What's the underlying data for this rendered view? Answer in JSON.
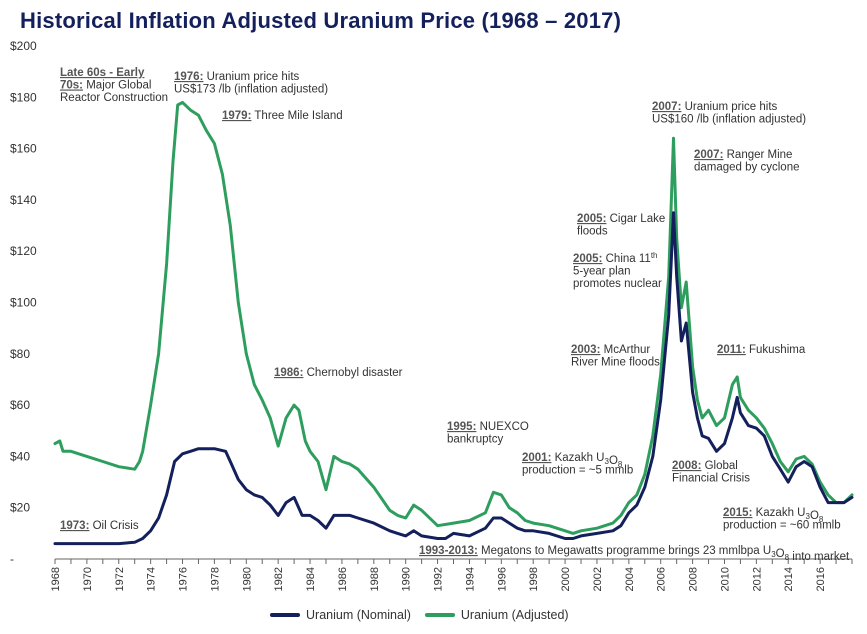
{
  "title": "Historical Inflation Adjusted Uranium Price (1968 – 2017)",
  "chart_data": {
    "type": "line",
    "ylim": [
      0,
      200
    ],
    "xlim": [
      1968,
      2018
    ],
    "y_ticks": [
      "-",
      "$20",
      "$40",
      "$60",
      "$80",
      "$100",
      "$120",
      "$140",
      "$160",
      "$180",
      "$200"
    ],
    "x_ticks": [
      "1968",
      "1970",
      "1972",
      "1974",
      "1976",
      "1978",
      "1980",
      "1982",
      "1984",
      "1986",
      "1988",
      "1990",
      "1992",
      "1994",
      "1996",
      "1998",
      "2000",
      "2002",
      "2004",
      "2006",
      "2008",
      "2010",
      "2012",
      "2014",
      "2016"
    ],
    "colors": {
      "nominal": "#14205c",
      "adjusted": "#2e9e5e"
    },
    "series": [
      {
        "name": "Uranium (Nominal)",
        "points": [
          [
            1968,
            6
          ],
          [
            1969,
            6
          ],
          [
            1970,
            6
          ],
          [
            1971,
            6
          ],
          [
            1972,
            6
          ],
          [
            1973,
            6.5
          ],
          [
            1973.5,
            8
          ],
          [
            1974,
            11
          ],
          [
            1974.5,
            16
          ],
          [
            1975,
            25
          ],
          [
            1975.5,
            38
          ],
          [
            1976,
            41
          ],
          [
            1976.5,
            42
          ],
          [
            1977,
            43
          ],
          [
            1978,
            43
          ],
          [
            1978.7,
            42
          ],
          [
            1979,
            38
          ],
          [
            1979.5,
            31
          ],
          [
            1980,
            27
          ],
          [
            1980.5,
            25
          ],
          [
            1981,
            24
          ],
          [
            1981.5,
            21
          ],
          [
            1982,
            17
          ],
          [
            1982.5,
            22
          ],
          [
            1983,
            24
          ],
          [
            1983.5,
            17
          ],
          [
            1984,
            17
          ],
          [
            1984.5,
            15
          ],
          [
            1985,
            12
          ],
          [
            1985.5,
            17
          ],
          [
            1986,
            17
          ],
          [
            1986.5,
            17
          ],
          [
            1987,
            16
          ],
          [
            1988,
            14
          ],
          [
            1989,
            11
          ],
          [
            1989.5,
            10
          ],
          [
            1990,
            9
          ],
          [
            1990.5,
            11
          ],
          [
            1991,
            9
          ],
          [
            1992,
            8
          ],
          [
            1992.5,
            8
          ],
          [
            1993,
            10
          ],
          [
            1994,
            9
          ],
          [
            1995,
            12
          ],
          [
            1995.5,
            16
          ],
          [
            1996,
            16
          ],
          [
            1996.5,
            14
          ],
          [
            1997,
            12
          ],
          [
            1997.5,
            11
          ],
          [
            1998,
            11
          ],
          [
            1999,
            10
          ],
          [
            2000,
            8
          ],
          [
            2000.5,
            8
          ],
          [
            2001,
            9
          ],
          [
            2002,
            10
          ],
          [
            2003,
            11
          ],
          [
            2003.5,
            13
          ],
          [
            2004,
            18
          ],
          [
            2004.5,
            21
          ],
          [
            2005,
            28
          ],
          [
            2005.5,
            40
          ],
          [
            2006,
            62
          ],
          [
            2006.5,
            95
          ],
          [
            2006.8,
            135
          ],
          [
            2007,
            110
          ],
          [
            2007.3,
            85
          ],
          [
            2007.6,
            92
          ],
          [
            2008,
            65
          ],
          [
            2008.3,
            55
          ],
          [
            2008.6,
            48
          ],
          [
            2009,
            47
          ],
          [
            2009.5,
            42
          ],
          [
            2010,
            45
          ],
          [
            2010.5,
            55
          ],
          [
            2010.8,
            63
          ],
          [
            2011,
            57
          ],
          [
            2011.5,
            52
          ],
          [
            2012,
            51
          ],
          [
            2012.5,
            48
          ],
          [
            2013,
            40
          ],
          [
            2013.5,
            35
          ],
          [
            2014,
            30
          ],
          [
            2014.5,
            36
          ],
          [
            2015,
            38
          ],
          [
            2015.5,
            36
          ],
          [
            2016,
            28
          ],
          [
            2016.5,
            22
          ],
          [
            2017,
            22
          ],
          [
            2017.5,
            22
          ],
          [
            2018,
            24
          ]
        ]
      },
      {
        "name": "Uranium (Adjusted)",
        "points": [
          [
            1968,
            45
          ],
          [
            1968.3,
            46
          ],
          [
            1968.5,
            42
          ],
          [
            1969,
            42
          ],
          [
            1970,
            40
          ],
          [
            1971,
            38
          ],
          [
            1972,
            36
          ],
          [
            1973,
            35
          ],
          [
            1973.3,
            38
          ],
          [
            1973.5,
            42
          ],
          [
            1974,
            60
          ],
          [
            1974.5,
            80
          ],
          [
            1975,
            115
          ],
          [
            1975.4,
            155
          ],
          [
            1975.7,
            177
          ],
          [
            1976,
            178
          ],
          [
            1976.5,
            175
          ],
          [
            1977,
            173
          ],
          [
            1977.5,
            167
          ],
          [
            1978,
            162
          ],
          [
            1978.5,
            150
          ],
          [
            1979,
            130
          ],
          [
            1979.5,
            100
          ],
          [
            1980,
            80
          ],
          [
            1980.5,
            68
          ],
          [
            1981,
            62
          ],
          [
            1981.5,
            55
          ],
          [
            1982,
            44
          ],
          [
            1982.5,
            55
          ],
          [
            1983,
            60
          ],
          [
            1983.3,
            58
          ],
          [
            1983.7,
            46
          ],
          [
            1984,
            42
          ],
          [
            1984.5,
            38
          ],
          [
            1985,
            27
          ],
          [
            1985.5,
            40
          ],
          [
            1986,
            38
          ],
          [
            1986.5,
            37
          ],
          [
            1987,
            35
          ],
          [
            1988,
            28
          ],
          [
            1989,
            19
          ],
          [
            1989.5,
            17
          ],
          [
            1990,
            16
          ],
          [
            1990.5,
            21
          ],
          [
            1991,
            19
          ],
          [
            1992,
            13
          ],
          [
            1993,
            14
          ],
          [
            1994,
            15
          ],
          [
            1995,
            18
          ],
          [
            1995.5,
            26
          ],
          [
            1996,
            25
          ],
          [
            1996.5,
            20
          ],
          [
            1997,
            18
          ],
          [
            1997.5,
            15
          ],
          [
            1998,
            14
          ],
          [
            1999,
            13
          ],
          [
            2000,
            11
          ],
          [
            2000.5,
            10
          ],
          [
            2001,
            11
          ],
          [
            2002,
            12
          ],
          [
            2003,
            14
          ],
          [
            2003.5,
            17
          ],
          [
            2004,
            22
          ],
          [
            2004.5,
            25
          ],
          [
            2005,
            33
          ],
          [
            2005.5,
            48
          ],
          [
            2006,
            72
          ],
          [
            2006.5,
            110
          ],
          [
            2006.8,
            164
          ],
          [
            2007,
            125
          ],
          [
            2007.3,
            98
          ],
          [
            2007.6,
            108
          ],
          [
            2008,
            75
          ],
          [
            2008.3,
            62
          ],
          [
            2008.6,
            55
          ],
          [
            2009,
            58
          ],
          [
            2009.5,
            52
          ],
          [
            2010,
            55
          ],
          [
            2010.5,
            68
          ],
          [
            2010.8,
            71
          ],
          [
            2011,
            63
          ],
          [
            2011.5,
            58
          ],
          [
            2012,
            55
          ],
          [
            2012.5,
            51
          ],
          [
            2013,
            45
          ],
          [
            2013.5,
            38
          ],
          [
            2014,
            34
          ],
          [
            2014.5,
            39
          ],
          [
            2015,
            40
          ],
          [
            2015.5,
            37
          ],
          [
            2016,
            30
          ],
          [
            2016.5,
            25
          ],
          [
            2017,
            22
          ],
          [
            2017.5,
            22
          ],
          [
            2018,
            25
          ]
        ]
      }
    ],
    "annotations": [
      {
        "id": "late60s",
        "lines": [
          [
            {
              "t": "Late 60s - Early",
              "b": true
            }
          ],
          [
            {
              "t": "70s:",
              "b": true
            },
            {
              "t": " Major Global"
            }
          ],
          [
            {
              "t": "Reactor Construction"
            }
          ]
        ]
      },
      {
        "id": "y1976",
        "lines": [
          [
            {
              "t": "1976:",
              "b": true
            },
            {
              "t": " Uranium price hits"
            }
          ],
          [
            {
              "t": "US$173 /lb (inflation adjusted)"
            }
          ]
        ]
      },
      {
        "id": "y1979",
        "lines": [
          [
            {
              "t": "1979:",
              "b": true
            },
            {
              "t": " Three Mile Island"
            }
          ]
        ]
      },
      {
        "id": "y1986",
        "lines": [
          [
            {
              "t": "1986:",
              "b": true
            },
            {
              "t": " Chernobyl disaster"
            }
          ]
        ]
      },
      {
        "id": "y1973",
        "lines": [
          [
            {
              "t": "1973:",
              "b": true
            },
            {
              "t": " Oil Crisis"
            }
          ]
        ]
      },
      {
        "id": "y1995",
        "lines": [
          [
            {
              "t": "1995:",
              "b": true
            },
            {
              "t": " NUEXCO"
            }
          ],
          [
            {
              "t": "bankruptcy"
            }
          ]
        ]
      },
      {
        "id": "y2001",
        "lines": [
          [
            {
              "t": "2001:",
              "b": true
            },
            {
              "t": " Kazakh U"
            },
            {
              "t": "3",
              "sub": true
            },
            {
              "t": "O"
            },
            {
              "t": "8",
              "sub": true
            }
          ],
          [
            {
              "t": "production = ~5 mmlb"
            }
          ]
        ]
      },
      {
        "id": "y1993",
        "lines": [
          [
            {
              "t": "1993-2013:",
              "b": true
            },
            {
              "t": " Megatons to Megawatts programme brings 23 mmlbpa U"
            },
            {
              "t": "3",
              "sub": true
            },
            {
              "t": "O"
            },
            {
              "t": "8",
              "sub": true
            },
            {
              "t": " into market"
            }
          ]
        ]
      },
      {
        "id": "y2003",
        "lines": [
          [
            {
              "t": "2003:",
              "b": true
            },
            {
              "t": " McArthur"
            }
          ],
          [
            {
              "t": "River Mine floods"
            }
          ]
        ]
      },
      {
        "id": "y2005a",
        "lines": [
          [
            {
              "t": "2005:",
              "b": true
            },
            {
              "t": " Cigar Lake"
            }
          ],
          [
            {
              "t": "floods"
            }
          ]
        ]
      },
      {
        "id": "y2005b",
        "lines": [
          [
            {
              "t": "2005:",
              "b": true
            },
            {
              "t": " China 11"
            },
            {
              "t": "th",
              "sup": true
            }
          ],
          [
            {
              "t": "5-year plan"
            }
          ],
          [
            {
              "t": "promotes nuclear"
            }
          ]
        ]
      },
      {
        "id": "y2007a",
        "lines": [
          [
            {
              "t": "2007:",
              "b": true
            },
            {
              "t": " Uranium price hits"
            }
          ],
          [
            {
              "t": "US$160 /lb (inflation adjusted)"
            }
          ]
        ]
      },
      {
        "id": "y2007b",
        "lines": [
          [
            {
              "t": "2007:",
              "b": true
            },
            {
              "t": " Ranger Mine"
            }
          ],
          [
            {
              "t": "damaged by cyclone"
            }
          ]
        ]
      },
      {
        "id": "y2011",
        "lines": [
          [
            {
              "t": "2011:",
              "b": true
            },
            {
              "t": " Fukushima"
            }
          ]
        ]
      },
      {
        "id": "y2008",
        "lines": [
          [
            {
              "t": "2008:",
              "b": true
            },
            {
              "t": " Global"
            }
          ],
          [
            {
              "t": "Financial Crisis"
            }
          ]
        ]
      },
      {
        "id": "y2015",
        "lines": [
          [
            {
              "t": "2015:",
              "b": true
            },
            {
              "t": " Kazakh U"
            },
            {
              "t": "3",
              "sub": true
            },
            {
              "t": "O"
            },
            {
              "t": "8",
              "sub": true
            }
          ],
          [
            {
              "t": "production = ~60 mmlb"
            }
          ]
        ]
      }
    ]
  }
}
